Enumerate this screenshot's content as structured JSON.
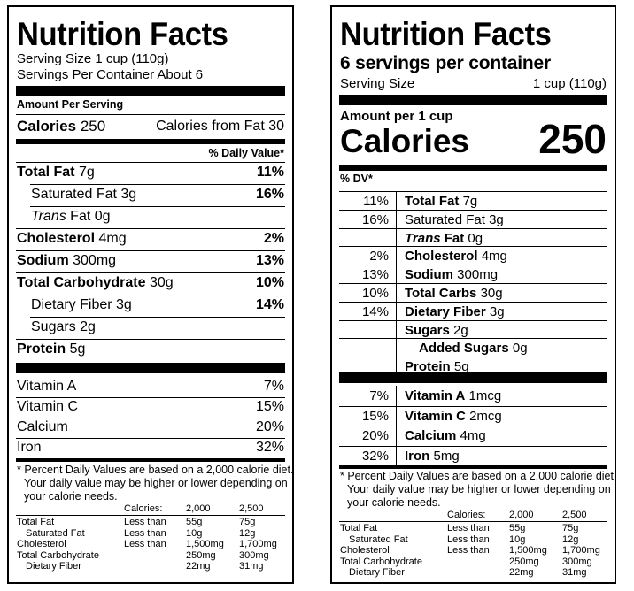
{
  "left": {
    "title": "Nutrition Facts",
    "serving_size": "Serving Size 1 cup (110g)",
    "servings_per_container": "Servings Per Container About 6",
    "amount_per_serving": "Amount Per Serving",
    "calories_label": "Calories",
    "calories_value": "250",
    "calories_from_fat": "Calories from Fat 30",
    "daily_value_header": "% Daily Value*",
    "nutrients": [
      {
        "name": "Total Fat",
        "amount": "7g",
        "dv": "11%"
      },
      {
        "name": "Saturated Fat",
        "amount": "3g",
        "dv": "16%"
      },
      {
        "name_italic": "Trans",
        "name": "Fat",
        "amount": "0g",
        "dv": ""
      },
      {
        "name": "Cholesterol",
        "amount": "4mg",
        "dv": "2%"
      },
      {
        "name": "Sodium",
        "amount": "300mg",
        "dv": "13%"
      },
      {
        "name": "Total Carbohydrate",
        "amount": "30g",
        "dv": "10%"
      },
      {
        "name": "Dietary Fiber",
        "amount": "3g",
        "dv": "14%"
      },
      {
        "name": "Sugars",
        "amount": "2g",
        "dv": ""
      },
      {
        "name": "Protein",
        "amount": "5g",
        "dv": ""
      }
    ],
    "vitamins": [
      {
        "name": "Vitamin A",
        "dv": "7%"
      },
      {
        "name": "Vitamin C",
        "dv": "15%"
      },
      {
        "name": "Calcium",
        "dv": "20%"
      },
      {
        "name": "Iron",
        "dv": "32%"
      }
    ],
    "footnote": [
      "* Percent Daily Values are based on a 2,000 calorie diet.",
      "Your daily value may be higher or lower depending on",
      "your calorie needs."
    ],
    "table": {
      "header": [
        "Calories:",
        "2,000",
        "2,500"
      ],
      "rows": [
        [
          "Total Fat",
          "Less than",
          "55g",
          "75g"
        ],
        [
          "Saturated Fat",
          "Less than",
          "10g",
          "12g"
        ],
        [
          "Cholesterol",
          "Less than",
          "1,500mg",
          "1,700mg"
        ],
        [
          "Total Carbohydrate",
          "",
          "250mg",
          "300mg"
        ],
        [
          "Dietary Fiber",
          "",
          "22mg",
          "31mg"
        ]
      ]
    }
  },
  "right": {
    "title": "Nutrition Facts",
    "servings_per_container": "6 servings per container",
    "serving_size_label": "Serving Size",
    "serving_size_value": "1 cup (110g)",
    "amount_per": "Amount per 1 cup",
    "calories_label": "Calories",
    "calories_value": "250",
    "dv_header": "% DV*",
    "nutrients": [
      {
        "dv": "11%",
        "name": "Total Fat",
        "amount": "7g"
      },
      {
        "dv": "16%",
        "name": "Saturated Fat",
        "amount": "3g"
      },
      {
        "dv": "",
        "name_italic": "Trans",
        "name": "Fat",
        "amount": "0g"
      },
      {
        "dv": "2%",
        "name": "Cholesterol",
        "amount": "4mg"
      },
      {
        "dv": "13%",
        "name": "Sodium",
        "amount": "300mg"
      },
      {
        "dv": "10%",
        "name": "Total Carbs",
        "amount": "30g"
      },
      {
        "dv": "14%",
        "name": "Dietary Fiber",
        "amount": "3g"
      },
      {
        "dv": "",
        "name": "Sugars",
        "amount": "2g"
      },
      {
        "dv": "",
        "name": "Added Sugars",
        "amount": "0g"
      },
      {
        "dv": "",
        "name": "Protein",
        "amount": "5g"
      }
    ],
    "vitamins": [
      {
        "dv": "7%",
        "name": "Vitamin A",
        "amount": "1mcg"
      },
      {
        "dv": "15%",
        "name": "Vitamin C",
        "amount": "2mcg"
      },
      {
        "dv": "20%",
        "name": "Calcium",
        "amount": "4mg"
      },
      {
        "dv": "32%",
        "name": "Iron",
        "amount": "5mg"
      }
    ],
    "footnote": [
      "* Percent Daily Values are based on a 2,000 calorie diet.",
      "Your daily value may be higher or lower depending on",
      "your calorie needs."
    ],
    "table": {
      "header": [
        "Calories:",
        "2,000",
        "2,500"
      ],
      "rows": [
        [
          "Total Fat",
          "Less than",
          "55g",
          "75g"
        ],
        [
          "Saturated Fat",
          "Less than",
          "10g",
          "12g"
        ],
        [
          "Cholesterol",
          "Less than",
          "1,500mg",
          "1,700mg"
        ],
        [
          "Total Carbohydrate",
          "",
          "250mg",
          "300mg"
        ],
        [
          "Dietary Fiber",
          "",
          "22mg",
          "31mg"
        ]
      ]
    }
  }
}
